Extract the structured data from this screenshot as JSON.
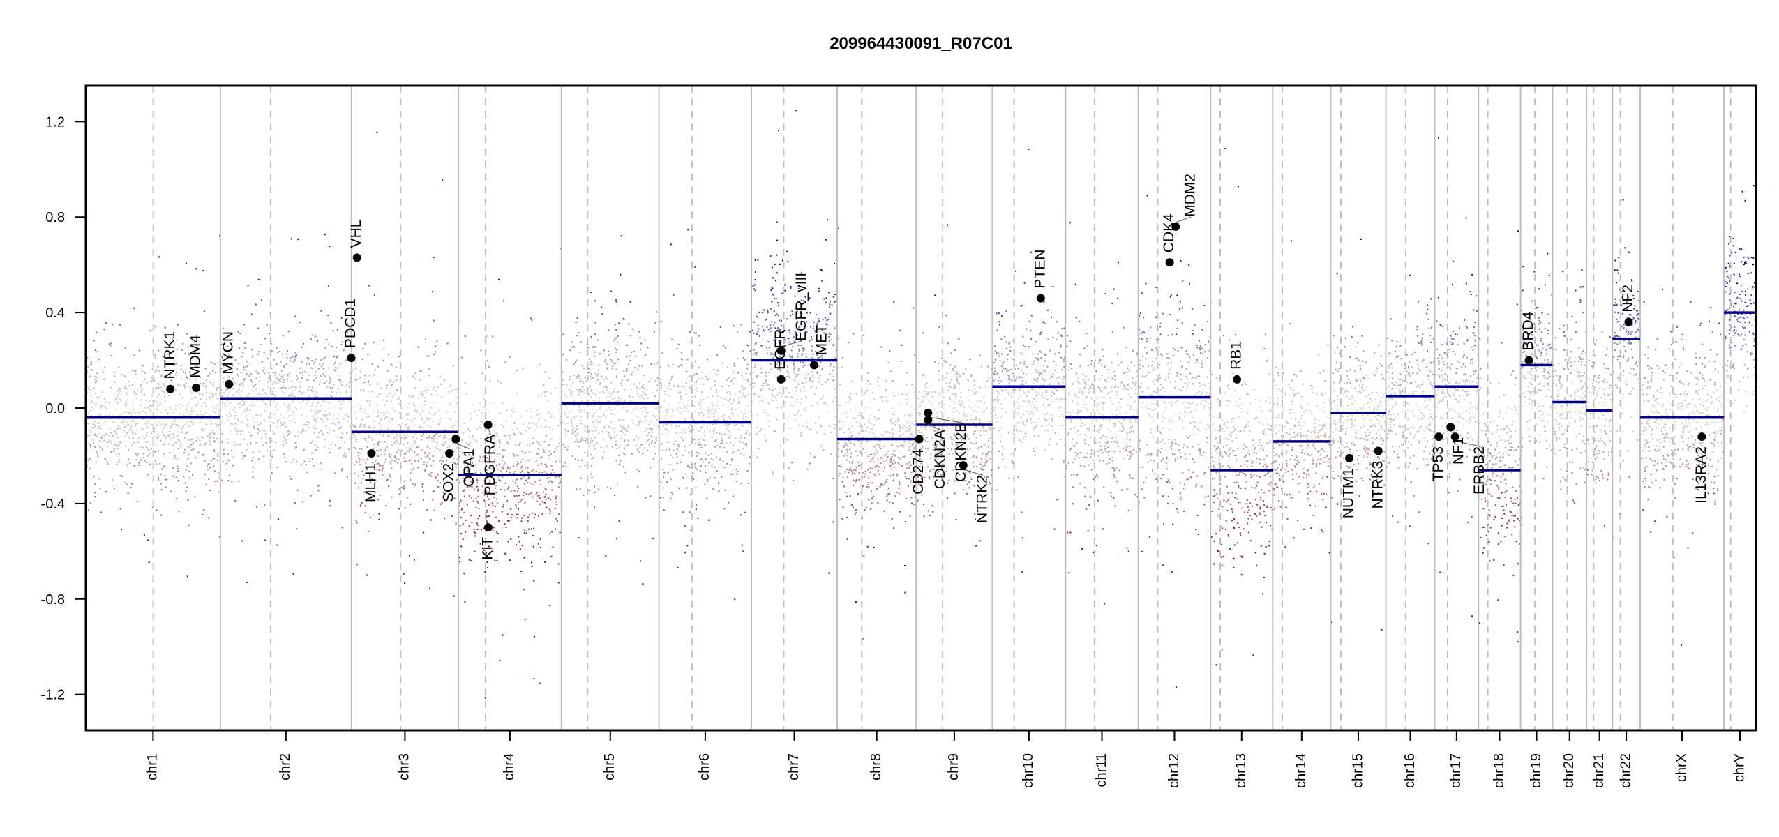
{
  "chart_data": {
    "type": "scatter",
    "title": "209964430091_R07C01",
    "xlabel": "",
    "ylabel": "",
    "ylim": [
      -1.35,
      1.35
    ],
    "y_ticks": [
      -1.2,
      -0.8,
      -0.4,
      0.0,
      0.4,
      0.8,
      1.2
    ],
    "y_tick_labels": [
      "-1.2",
      "-0.8",
      "-0.4",
      "0.0",
      "0.4",
      "0.8",
      "1.2"
    ],
    "grid": false,
    "colors": {
      "gain": "#00008b",
      "neutral": "#d3d3d3",
      "loss": "#8b0000",
      "segment": "#00008b",
      "boundary": "#bebebe",
      "gene_point": "#000000"
    },
    "chromosomes": [
      {
        "name": "chr1",
        "length_mb": 249.25,
        "centromere_mb": 125.0,
        "segment": -0.04
      },
      {
        "name": "chr2",
        "length_mb": 243.2,
        "centromere_mb": 93.3,
        "segment": 0.04
      },
      {
        "name": "chr3",
        "length_mb": 198.0,
        "centromere_mb": 91.0,
        "segment": -0.1
      },
      {
        "name": "chr4",
        "length_mb": 191.15,
        "centromere_mb": 50.4,
        "segment": -0.28
      },
      {
        "name": "chr5",
        "length_mb": 180.9,
        "centromere_mb": 48.4,
        "segment": 0.02
      },
      {
        "name": "chr6",
        "length_mb": 171.1,
        "centromere_mb": 61.0,
        "segment": -0.06
      },
      {
        "name": "chr7",
        "length_mb": 159.1,
        "centromere_mb": 59.9,
        "segment": 0.2
      },
      {
        "name": "chr8",
        "length_mb": 146.4,
        "centromere_mb": 45.6,
        "segment": -0.13
      },
      {
        "name": "chr9",
        "length_mb": 141.2,
        "centromere_mb": 49.0,
        "segment": -0.07
      },
      {
        "name": "chr10",
        "length_mb": 135.5,
        "centromere_mb": 40.2,
        "segment": 0.09
      },
      {
        "name": "chr11",
        "length_mb": 135.0,
        "centromere_mb": 53.7,
        "segment": -0.04
      },
      {
        "name": "chr12",
        "length_mb": 133.9,
        "centromere_mb": 35.8,
        "segment": 0.045
      },
      {
        "name": "chr13",
        "length_mb": 115.2,
        "centromere_mb": 17.9,
        "segment": -0.26
      },
      {
        "name": "chr14",
        "length_mb": 107.3,
        "centromere_mb": 17.6,
        "segment": -0.14
      },
      {
        "name": "chr15",
        "length_mb": 102.5,
        "centromere_mb": 19.0,
        "segment": -0.02
      },
      {
        "name": "chr16",
        "length_mb": 90.35,
        "centromere_mb": 36.6,
        "segment": 0.05
      },
      {
        "name": "chr17",
        "length_mb": 81.2,
        "centromere_mb": 24.0,
        "segment": 0.09
      },
      {
        "name": "chr18",
        "length_mb": 78.1,
        "centromere_mb": 17.2,
        "segment": -0.26
      },
      {
        "name": "chr19",
        "length_mb": 59.1,
        "centromere_mb": 26.5,
        "segment": 0.18
      },
      {
        "name": "chr20",
        "length_mb": 63.0,
        "centromere_mb": 27.5,
        "segment": 0.025
      },
      {
        "name": "chr21",
        "length_mb": 48.1,
        "centromere_mb": 13.2,
        "segment": -0.01
      },
      {
        "name": "chr22",
        "length_mb": 51.3,
        "centromere_mb": 14.7,
        "segment": 0.29
      },
      {
        "name": "chrX",
        "length_mb": 155.3,
        "centromere_mb": 60.6,
        "segment": -0.04
      },
      {
        "name": "chrY",
        "length_mb": 59.4,
        "centromere_mb": 12.5,
        "segment": 0.4
      }
    ],
    "genes": [
      {
        "name": "NTRK1",
        "chr": "chr1",
        "pos_mb": 156.8,
        "value": 0.08
      },
      {
        "name": "MDM4",
        "chr": "chr1",
        "pos_mb": 204.5,
        "value": 0.085
      },
      {
        "name": "MYCN",
        "chr": "chr2",
        "pos_mb": 16.0,
        "value": 0.1
      },
      {
        "name": "PDCD1",
        "chr": "chr2",
        "pos_mb": 242.8,
        "value": 0.21
      },
      {
        "name": "VHL",
        "chr": "chr3",
        "pos_mb": 10.2,
        "value": 0.63
      },
      {
        "name": "MLH1",
        "chr": "chr3",
        "pos_mb": 37.0,
        "value": -0.19
      },
      {
        "name": "SOX2",
        "chr": "chr3",
        "pos_mb": 181.4,
        "value": -0.19
      },
      {
        "name": "OPA1",
        "chr": "chr3",
        "pos_mb": 193.3,
        "value": -0.13
      },
      {
        "name": "PDGFRA",
        "chr": "chr4",
        "pos_mb": 55.1,
        "value": -0.07
      },
      {
        "name": "KIT",
        "chr": "chr4",
        "pos_mb": 55.5,
        "value": -0.5
      },
      {
        "name": "EGFR",
        "chr": "chr7",
        "pos_mb": 55.1,
        "value": 0.12
      },
      {
        "name": "EGFR_vIII",
        "chr": "chr7",
        "pos_mb": 55.2,
        "value": 0.24
      },
      {
        "name": "MET",
        "chr": "chr7",
        "pos_mb": 116.3,
        "value": 0.18
      },
      {
        "name": "CD274",
        "chr": "chr9",
        "pos_mb": 5.5,
        "value": -0.13
      },
      {
        "name": "CDKN2A",
        "chr": "chr9",
        "pos_mb": 21.97,
        "value": -0.05
      },
      {
        "name": "CDKN2B",
        "chr": "chr9",
        "pos_mb": 22.0,
        "value": -0.02
      },
      {
        "name": "NTRK2",
        "chr": "chr9",
        "pos_mb": 87.3,
        "value": -0.24
      },
      {
        "name": "PTEN",
        "chr": "chr10",
        "pos_mb": 89.6,
        "value": 0.46
      },
      {
        "name": "CDK4",
        "chr": "chr12",
        "pos_mb": 58.1,
        "value": 0.61
      },
      {
        "name": "MDM2",
        "chr": "chr12",
        "pos_mb": 69.2,
        "value": 0.76
      },
      {
        "name": "RB1",
        "chr": "chr13",
        "pos_mb": 48.9,
        "value": 0.12
      },
      {
        "name": "NUTM1",
        "chr": "chr15",
        "pos_mb": 34.6,
        "value": -0.21
      },
      {
        "name": "NTRK3",
        "chr": "chr15",
        "pos_mb": 88.5,
        "value": -0.18
      },
      {
        "name": "TP53",
        "chr": "chr17",
        "pos_mb": 7.5,
        "value": -0.12
      },
      {
        "name": "NF1",
        "chr": "chr17",
        "pos_mb": 29.5,
        "value": -0.08
      },
      {
        "name": "ERBB2",
        "chr": "chr17",
        "pos_mb": 37.8,
        "value": -0.12
      },
      {
        "name": "BRD4",
        "chr": "chr19",
        "pos_mb": 15.4,
        "value": 0.2
      },
      {
        "name": "NF2",
        "chr": "chr22",
        "pos_mb": 30.0,
        "value": 0.36
      },
      {
        "name": "IL13RA2",
        "chr": "chrX",
        "pos_mb": 114.3,
        "value": -0.12
      }
    ]
  }
}
